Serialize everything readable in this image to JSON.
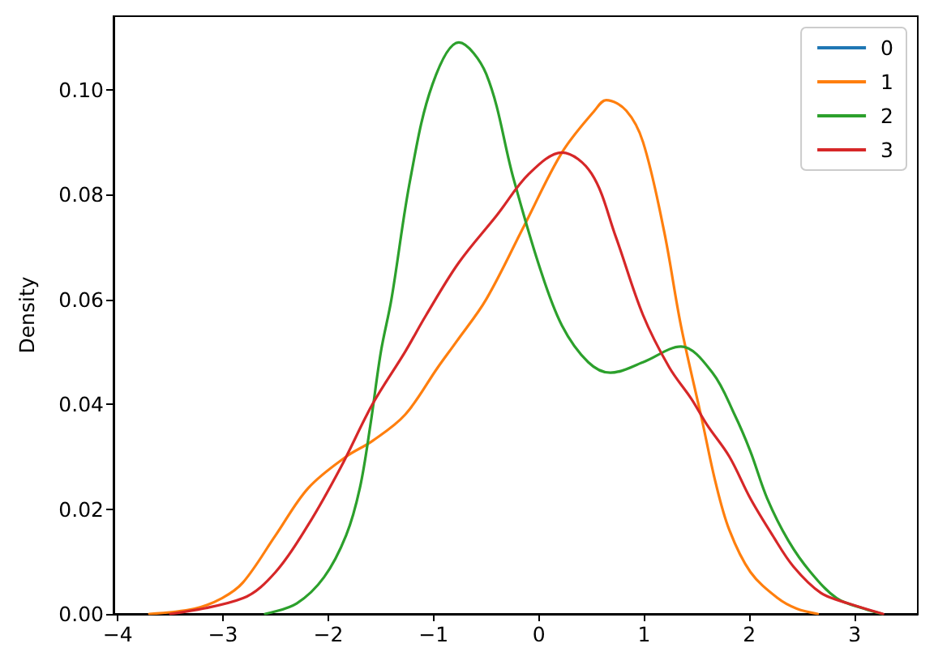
{
  "chart_data": {
    "type": "line",
    "ylabel": "Density",
    "xlim": [
      -4.04,
      3.6
    ],
    "ylim": [
      0,
      0.114
    ],
    "xticks": [
      {
        "value": -4,
        "label": "−4"
      },
      {
        "value": -3,
        "label": "−3"
      },
      {
        "value": -2,
        "label": "−2"
      },
      {
        "value": -1,
        "label": "−1"
      },
      0,
      1,
      2,
      3
    ],
    "yticks": [
      {
        "value": 0,
        "label": "0.00"
      },
      {
        "value": 0.02,
        "label": "0.02"
      },
      {
        "value": 0.04,
        "label": "0.04"
      },
      {
        "value": 0.06,
        "label": "0.06"
      },
      {
        "value": 0.08,
        "label": "0.08"
      },
      {
        "value": 0.1,
        "label": "0.10"
      }
    ],
    "grid": false,
    "legend": "top right",
    "series": [
      {
        "name": "0",
        "color": "#1f77b4"
      },
      {
        "name": "1",
        "color": "#ff7f0e",
        "x": [
          -3.7,
          -3.27,
          -3.01,
          -2.81,
          -2.5,
          -2.19,
          -1.83,
          -1.58,
          -1.27,
          -0.96,
          -0.78,
          -0.5,
          -0.14,
          0.22,
          0.53,
          0.64,
          0.83,
          0.99,
          1.19,
          1.35,
          1.55,
          1.68,
          1.81,
          2.01,
          2.27,
          2.45,
          2.65
        ],
        "values": [
          0,
          0.001,
          0.003,
          0.006,
          0.015,
          0.024,
          0.03,
          0.033,
          0.038,
          0.047,
          0.052,
          0.06,
          0.074,
          0.088,
          0.096,
          0.098,
          0.096,
          0.09,
          0.073,
          0.055,
          0.037,
          0.025,
          0.016,
          0.008,
          0.003,
          0.001,
          0
        ]
      },
      {
        "name": "2",
        "color": "#2ca02c",
        "x": [
          -2.6,
          -2.3,
          -2.04,
          -1.83,
          -1.7,
          -1.6,
          -1.5,
          -1.4,
          -1.22,
          -1.01,
          -0.76,
          -0.5,
          -0.24,
          0.01,
          0.22,
          0.47,
          0.68,
          0.99,
          1.35,
          1.65,
          1.86,
          2.01,
          2.17,
          2.37,
          2.58,
          2.83,
          3.09,
          3.26
        ],
        "values": [
          0,
          0.002,
          0.007,
          0.015,
          0.024,
          0.036,
          0.05,
          0.06,
          0.083,
          0.101,
          0.109,
          0.103,
          0.083,
          0.066,
          0.055,
          0.048,
          0.046,
          0.048,
          0.051,
          0.046,
          0.038,
          0.031,
          0.022,
          0.014,
          0.008,
          0.003,
          0.001,
          0
        ]
      },
      {
        "name": "3",
        "color": "#d62728",
        "x": [
          -3.5,
          -2.81,
          -2.5,
          -2.19,
          -1.88,
          -1.58,
          -1.27,
          -1.07,
          -0.76,
          -0.4,
          -0.09,
          0.22,
          0.5,
          0.73,
          0.99,
          1.24,
          1.45,
          1.6,
          1.81,
          2.01,
          2.22,
          2.42,
          2.68,
          2.94,
          3.27
        ],
        "values": [
          0,
          0.003,
          0.008,
          0.017,
          0.028,
          0.04,
          0.05,
          0.057,
          0.067,
          0.076,
          0.084,
          0.088,
          0.084,
          0.072,
          0.057,
          0.047,
          0.041,
          0.036,
          0.03,
          0.022,
          0.015,
          0.009,
          0.004,
          0.002,
          0
        ]
      }
    ]
  }
}
